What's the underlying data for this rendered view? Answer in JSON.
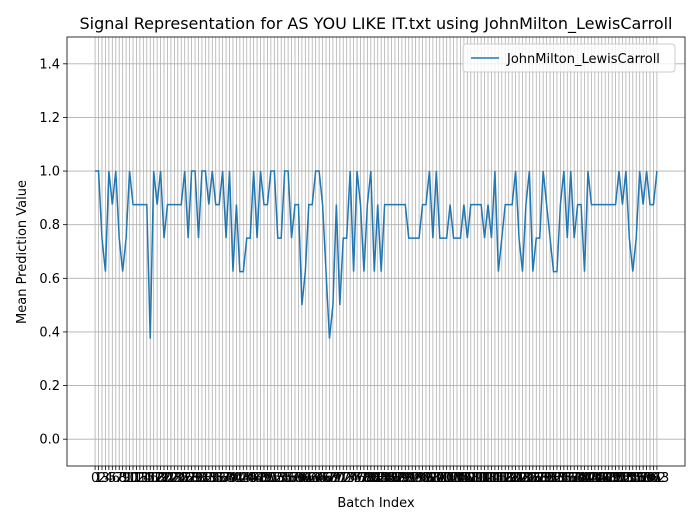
{
  "chart_data": {
    "type": "line",
    "title": "Signal Representation for AS YOU LIKE IT.txt using JohnMilton_LewisCarroll",
    "xlabel": "Batch Index",
    "ylabel": "Mean Prediction Value",
    "x": [
      0,
      1,
      2,
      3,
      4,
      5,
      6,
      7,
      8,
      9,
      10,
      11,
      12,
      13,
      14,
      15,
      16,
      17,
      18,
      19,
      20,
      21,
      22,
      23,
      24,
      25,
      26,
      27,
      28,
      29,
      30,
      31,
      32,
      33,
      34,
      35,
      36,
      37,
      38,
      39,
      40,
      41,
      42,
      43,
      44,
      45,
      46,
      47,
      48,
      49,
      50,
      51,
      52,
      53,
      54,
      55,
      56,
      57,
      58,
      59,
      60,
      61,
      62,
      63,
      64,
      65,
      66,
      67,
      68,
      69,
      70,
      71,
      72,
      73,
      74,
      75,
      76,
      77,
      78,
      79,
      80,
      81,
      82,
      83,
      84,
      85,
      86,
      87,
      88,
      89,
      90,
      91,
      92,
      93,
      94,
      95,
      96,
      97,
      98,
      99,
      100,
      101,
      102,
      103,
      104,
      105,
      106,
      107,
      108,
      109,
      110,
      111,
      112,
      113,
      114,
      115,
      116,
      117,
      118,
      119,
      120,
      121,
      122,
      123,
      124,
      125,
      126,
      127,
      128,
      129,
      130,
      131,
      132,
      133,
      134,
      135,
      136,
      137,
      138,
      139,
      140,
      141,
      142,
      143,
      144,
      145,
      146,
      147,
      148,
      149,
      150,
      151,
      152,
      153,
      154,
      155,
      156,
      157,
      158,
      159,
      160,
      161,
      162,
      163
    ],
    "series": [
      {
        "name": "JohnMilton_LewisCarroll",
        "color": "#1f77b4",
        "values": [
          1,
          1,
          0.75,
          0.625,
          1,
          0.875,
          1,
          0.75,
          0.625,
          0.75,
          1,
          0.875,
          0.875,
          0.875,
          0.875,
          0.875,
          0.375,
          1,
          0.875,
          1,
          0.75,
          0.875,
          0.875,
          0.875,
          0.875,
          0.875,
          1,
          0.75,
          1,
          1,
          0.75,
          1,
          1,
          0.875,
          1,
          0.875,
          0.875,
          1,
          0.75,
          1,
          0.625,
          0.875,
          0.625,
          0.625,
          0.75,
          0.75,
          1,
          0.75,
          1,
          0.875,
          0.875,
          1,
          1,
          0.75,
          0.75,
          1,
          1,
          0.75,
          0.875,
          0.875,
          0.5,
          0.625,
          0.875,
          0.875,
          1,
          1,
          0.875,
          0.625,
          0.375,
          0.5,
          0.875,
          0.5,
          0.75,
          0.75,
          1,
          0.625,
          1,
          0.875,
          0.625,
          0.875,
          1,
          0.625,
          0.875,
          0.625,
          0.875,
          0.875,
          0.875,
          0.875,
          0.875,
          0.875,
          0.875,
          0.75,
          0.75,
          0.75,
          0.75,
          0.875,
          0.875,
          1,
          0.75,
          1,
          0.75,
          0.75,
          0.75,
          0.875,
          0.75,
          0.75,
          0.75,
          0.875,
          0.75,
          0.875,
          0.875,
          0.875,
          0.875,
          0.75,
          0.875,
          0.75,
          1,
          0.625,
          0.75,
          0.875,
          0.875,
          0.875,
          1,
          0.75,
          0.625,
          0.875,
          1,
          0.625,
          0.75,
          0.75,
          1,
          0.875,
          0.75,
          0.625,
          0.625,
          0.875,
          1,
          0.75,
          1,
          0.75,
          0.875,
          0.875,
          0.625,
          1,
          0.875,
          0.875,
          0.875,
          0.875,
          0.875,
          0.875,
          0.875,
          0.875,
          1,
          0.875,
          1,
          0.75,
          0.625,
          0.75,
          1,
          0.875,
          1,
          0.875,
          0.875,
          1
        ]
      }
    ],
    "xlim": [
      -8.15,
      171.15
    ],
    "xticks": [
      0,
      1,
      2,
      3,
      4,
      5,
      6,
      7,
      8,
      9,
      10,
      11,
      12,
      13,
      14,
      15,
      16,
      17,
      18,
      19,
      20,
      21,
      22,
      23,
      24,
      25,
      26,
      27,
      28,
      29,
      30,
      31,
      32,
      33,
      34,
      35,
      36,
      37,
      38,
      39,
      40,
      41,
      42,
      43,
      44,
      45,
      46,
      47,
      48,
      49,
      50,
      51,
      52,
      53,
      54,
      55,
      56,
      57,
      58,
      59,
      60,
      61,
      62,
      63,
      64,
      65,
      66,
      67,
      68,
      69,
      70,
      71,
      72,
      73,
      74,
      75,
      76,
      77,
      78,
      79,
      80,
      81,
      82,
      83,
      84,
      85,
      86,
      87,
      88,
      89,
      90,
      91,
      92,
      93,
      94,
      95,
      96,
      97,
      98,
      99,
      100,
      101,
      102,
      103,
      104,
      105,
      106,
      107,
      108,
      109,
      110,
      111,
      112,
      113,
      114,
      115,
      116,
      117,
      118,
      119,
      120,
      121,
      122,
      123,
      124,
      125,
      126,
      127,
      128,
      129,
      130,
      131,
      132,
      133,
      134,
      135,
      136,
      137,
      138,
      139,
      140,
      141,
      142,
      143,
      144,
      145,
      146,
      147,
      148,
      149,
      150,
      151,
      152,
      153,
      154,
      155,
      156,
      157,
      158,
      159,
      160,
      161,
      162,
      163
    ],
    "ylim": [
      -0.1,
      1.5
    ],
    "yticks": [
      {
        "value": 0,
        "label": "0.0"
      },
      {
        "value": 0.2,
        "label": "0.2"
      },
      {
        "value": 0.4,
        "label": "0.4"
      },
      {
        "value": 0.6,
        "label": "0.6"
      },
      {
        "value": 0.8,
        "label": "0.8"
      },
      {
        "value": 1,
        "label": "1.0"
      },
      {
        "value": 1.2,
        "label": "1.2"
      },
      {
        "value": 1.4,
        "label": "1.4"
      }
    ],
    "grid": true,
    "legend": "upper right"
  }
}
